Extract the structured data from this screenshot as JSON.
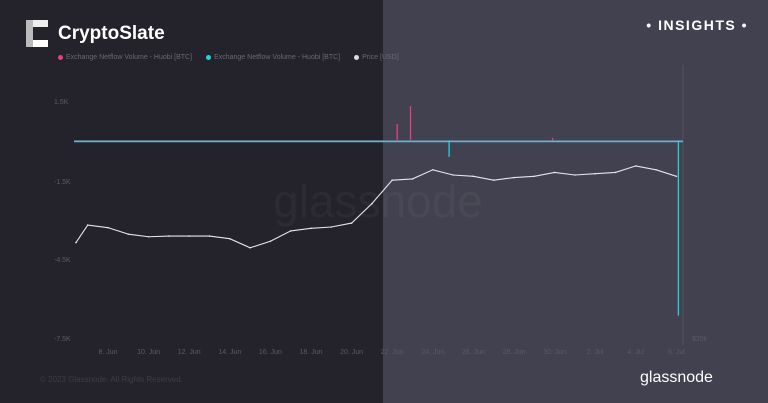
{
  "header": {
    "brand": "CryptoSlate",
    "badge": "• INSIGHTS •"
  },
  "footer": {
    "copyright": "© 2023 Glassnode. All Rights Reserved.",
    "logo": "glassnode"
  },
  "watermark": "glassnode",
  "colors": {
    "inflow": "#e8407a",
    "outflow": "#22d3e0",
    "price": "#e6e6ee",
    "left_bg": "#24222b",
    "right_bg": "#42414f"
  },
  "chart_data": {
    "type": "line",
    "legend": [
      "Exchange Netflow Volume - Huobi [BTC]",
      "Exchange Netflow Volume - Huobi [BTC]",
      "Price [USD]"
    ],
    "legend_placement": "top-left",
    "y_ticks": [
      "1.5K",
      "-1.5K",
      "-4.5K",
      "-7.5K"
    ],
    "y_right_ticks": [
      "$20k"
    ],
    "x_ticks": [
      "8. Jun",
      "10. Jun",
      "12. Jun",
      "14. Jun",
      "16. Jun",
      "18. Jun",
      "20. Jun",
      "22. Jun",
      "24. Jun",
      "26. Jun",
      "28. Jun",
      "30. Jun",
      "2. Jul",
      "4. Jul",
      "6. Jul"
    ],
    "ylim": [
      -7500,
      3000
    ],
    "grid": false,
    "netflow_spikes": [
      {
        "date": "22 Jun",
        "value": 630,
        "series": "inflow"
      },
      {
        "date": "23 Jun",
        "value": 1310,
        "series": "inflow"
      },
      {
        "date": "30 Jun",
        "value": 100,
        "series": "inflow"
      },
      {
        "date": "25 Jun",
        "value": -620,
        "series": "outflow"
      },
      {
        "date": "6 Jul",
        "value": -6650,
        "series": "outflow"
      }
    ],
    "price": {
      "start": "7 Jun",
      "values": [
        26650,
        26450,
        25950,
        25750,
        25800,
        25800,
        25800,
        25600,
        24900,
        25400,
        26200,
        26400,
        26500,
        26800,
        28300,
        30100,
        30200,
        30900,
        30500,
        30400,
        30100,
        30300,
        30400,
        30700,
        30500,
        30600,
        30700,
        31200,
        30900,
        30400
      ]
    }
  }
}
